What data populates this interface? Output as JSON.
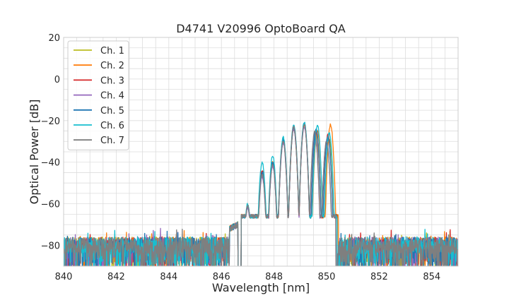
{
  "chart_data": {
    "type": "line",
    "title": "D4741 V20996 OptoBoard QA",
    "xlabel": "Wavelength [nm]",
    "ylabel": "Optical Power [dB]",
    "xlim": [
      840,
      855
    ],
    "ylim": [
      -90,
      20
    ],
    "xticks": [
      840,
      842,
      844,
      846,
      848,
      850,
      852,
      854
    ],
    "xtick_labels": [
      "840",
      "842",
      "844",
      "846",
      "848",
      "850",
      "852",
      "854"
    ],
    "yticks": [
      20,
      0,
      -20,
      -40,
      -60,
      -80
    ],
    "ytick_labels": [
      "20",
      "0",
      "−20",
      "−40",
      "−60",
      "−80"
    ],
    "grid": true,
    "legend_position": "top-left",
    "noise_floor_db": -80,
    "series": [
      {
        "name": "Ch. 1",
        "color": "#bcbd22",
        "peaks": [
          [
            847.0,
            -61
          ],
          [
            847.3,
            -68
          ],
          [
            847.55,
            -46
          ],
          [
            847.95,
            -41
          ],
          [
            848.35,
            -30
          ],
          [
            848.75,
            -24
          ],
          [
            849.15,
            -22
          ],
          [
            849.6,
            -26
          ],
          [
            850.1,
            -29
          ]
        ],
        "edge_low": 846.75,
        "edge_high": 850.45
      },
      {
        "name": "Ch. 2",
        "color": "#ff7f0e",
        "peaks": [
          [
            847.0,
            -61
          ],
          [
            847.3,
            -67
          ],
          [
            847.55,
            -45
          ],
          [
            847.95,
            -40
          ],
          [
            848.35,
            -29
          ],
          [
            848.75,
            -23
          ],
          [
            849.15,
            -22
          ],
          [
            849.65,
            -25
          ],
          [
            850.15,
            -22
          ]
        ],
        "edge_low": 846.75,
        "edge_high": 850.45
      },
      {
        "name": "Ch. 3",
        "color": "#d62728",
        "peaks": [
          [
            847.0,
            -61
          ],
          [
            847.3,
            -68
          ],
          [
            847.55,
            -44
          ],
          [
            847.95,
            -41
          ],
          [
            848.35,
            -30
          ],
          [
            848.75,
            -24
          ],
          [
            849.15,
            -22
          ],
          [
            849.6,
            -25
          ],
          [
            850.05,
            -27
          ]
        ],
        "edge_low": 846.75,
        "edge_high": 850.4
      },
      {
        "name": "Ch. 4",
        "color": "#9467bd",
        "peaks": [
          [
            847.0,
            -62
          ],
          [
            847.3,
            -68
          ],
          [
            847.55,
            -47
          ],
          [
            847.95,
            -42
          ],
          [
            848.35,
            -31
          ],
          [
            848.75,
            -24
          ],
          [
            849.15,
            -23
          ],
          [
            849.55,
            -27
          ],
          [
            850.0,
            -30
          ]
        ],
        "edge_low": 846.75,
        "edge_high": 850.35
      },
      {
        "name": "Ch. 5",
        "color": "#1f77b4",
        "peaks": [
          [
            847.0,
            -61
          ],
          [
            847.3,
            -67
          ],
          [
            847.55,
            -45
          ],
          [
            847.95,
            -40
          ],
          [
            848.35,
            -29
          ],
          [
            848.75,
            -23
          ],
          [
            849.15,
            -21
          ],
          [
            849.6,
            -24
          ],
          [
            850.05,
            -28
          ]
        ],
        "edge_low": 846.75,
        "edge_high": 850.4
      },
      {
        "name": "Ch. 6",
        "color": "#17becf",
        "peaks": [
          [
            847.0,
            -60
          ],
          [
            847.3,
            -66
          ],
          [
            847.55,
            -40
          ],
          [
            847.95,
            -37
          ],
          [
            848.35,
            -28
          ],
          [
            848.75,
            -22
          ],
          [
            849.15,
            -21
          ],
          [
            849.65,
            -22
          ],
          [
            850.1,
            -26
          ]
        ],
        "edge_low": 846.75,
        "edge_high": 850.4
      },
      {
        "name": "Ch. 7",
        "color": "#7f7f7f",
        "peaks": [
          [
            847.0,
            -61
          ],
          [
            847.3,
            -68
          ],
          [
            847.55,
            -46
          ],
          [
            847.95,
            -41
          ],
          [
            848.35,
            -30
          ],
          [
            848.75,
            -23
          ],
          [
            849.15,
            -22
          ],
          [
            849.55,
            -25
          ],
          [
            850.0,
            -30
          ]
        ],
        "edge_low": 846.75,
        "edge_high": 850.35
      }
    ]
  }
}
